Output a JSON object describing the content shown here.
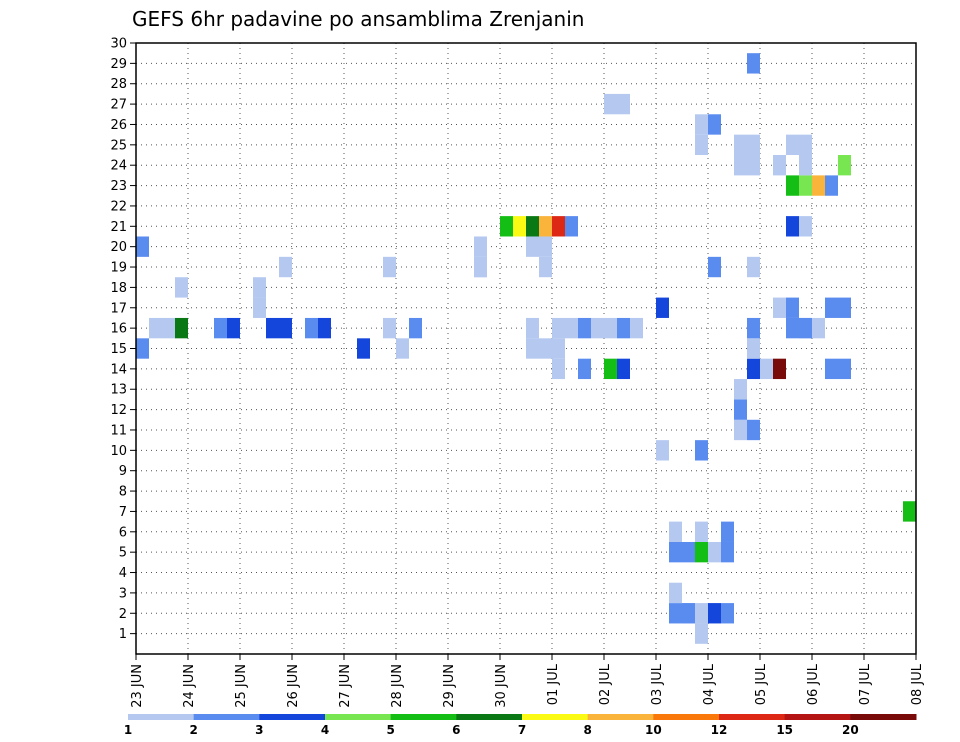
{
  "chart_data": {
    "type": "heatmap",
    "title": "GEFS 6hr padavine po ansamblima Zrenjanin",
    "x_tick_labels": [
      "23 JUN",
      "24 JUN",
      "25 JUN",
      "26 JUN",
      "27 JUN",
      "28 JUN",
      "29 JUN",
      "30 JUN",
      "01 JUL",
      "02 JUL",
      "03 JUL",
      "04 JUL",
      "05 JUL",
      "06 JUL",
      "07 JUL",
      "08 JUL"
    ],
    "y_tick_labels": [
      "1",
      "2",
      "3",
      "4",
      "5",
      "6",
      "7",
      "8",
      "9",
      "10",
      "11",
      "12",
      "13",
      "14",
      "15",
      "16",
      "17",
      "18",
      "19",
      "20",
      "21",
      "22",
      "23",
      "24",
      "25",
      "26",
      "27",
      "28",
      "29",
      "30"
    ],
    "time_steps_per_day": 4,
    "x_range_steps": [
      0,
      60
    ],
    "y_range_members": [
      0,
      30
    ],
    "grid": true,
    "colorbar": {
      "colors": [
        "#b4c8f0",
        "#5a8cf0",
        "#1446dc",
        "#78e650",
        "#14be14",
        "#0a7814",
        "#fafa14",
        "#fab43c",
        "#fa780a",
        "#dc2814",
        "#b41414",
        "#780a0a"
      ],
      "labels": [
        "1",
        "2",
        "3",
        "4",
        "5",
        "6",
        "7",
        "8",
        "10",
        "12",
        "15",
        "20"
      ]
    },
    "note_cells": "cells: [time_step_index_from_23_JUN_00UTC, ensemble_member, precipitation_mm_in_6h]",
    "cells": [
      [
        15,
        0,
        2
      ],
      [
        16,
        1,
        1
      ],
      [
        20,
        0,
        2
      ],
      [
        16,
        2,
        1
      ],
      [
        16,
        3,
        6
      ],
      [
        18,
        3,
        1
      ],
      [
        16,
        6,
        2
      ],
      [
        16,
        7,
        3
      ],
      [
        17,
        9,
        1
      ],
      [
        18,
        9,
        1
      ],
      [
        16,
        10,
        3
      ],
      [
        16,
        11,
        3
      ],
      [
        19,
        11,
        1
      ],
      [
        16,
        13,
        2
      ],
      [
        16,
        14,
        3
      ],
      [
        19,
        19,
        1
      ],
      [
        15,
        17,
        3
      ],
      [
        16,
        19,
        1
      ],
      [
        15,
        20,
        1
      ],
      [
        16,
        21,
        2
      ],
      [
        19,
        26,
        1
      ],
      [
        20,
        26,
        1
      ],
      [
        15,
        30,
        1
      ],
      [
        16,
        30,
        1
      ],
      [
        15,
        31,
        1
      ],
      [
        16,
        33,
        1
      ],
      [
        16,
        34,
        2
      ],
      [
        16,
        35,
        1
      ],
      [
        16,
        36,
        1
      ],
      [
        16,
        37,
        2
      ],
      [
        16,
        38,
        1
      ],
      [
        15,
        32,
        1
      ],
      [
        14,
        32,
        1
      ],
      [
        16,
        32,
        1
      ],
      [
        14,
        34,
        2
      ],
      [
        19,
        26,
        1
      ],
      [
        20,
        30,
        1
      ],
      [
        20,
        31,
        1
      ],
      [
        19,
        31,
        1
      ],
      [
        21,
        28,
        5
      ],
      [
        21,
        29,
        7
      ],
      [
        21,
        30,
        6
      ],
      [
        21,
        31,
        9
      ],
      [
        21,
        32,
        12
      ],
      [
        21,
        33,
        2
      ],
      [
        27,
        36,
        1
      ],
      [
        27,
        37,
        1
      ],
      [
        14,
        36,
        5
      ],
      [
        14,
        37,
        3
      ],
      [
        17,
        40,
        3
      ],
      [
        10,
        40,
        1
      ],
      [
        2,
        41,
        2
      ],
      [
        3,
        41,
        1
      ],
      [
        5,
        41,
        2
      ],
      [
        6,
        41,
        1
      ],
      [
        2,
        42,
        1
      ],
      [
        2,
        43,
        1
      ],
      [
        2,
        44,
        3
      ],
      [
        2,
        45,
        2
      ],
      [
        1,
        43,
        1
      ],
      [
        2,
        42,
        2
      ],
      [
        5,
        42,
        2
      ],
      [
        5,
        43,
        5
      ],
      [
        5,
        44,
        1
      ],
      [
        5,
        45,
        2
      ],
      [
        6,
        43,
        1
      ],
      [
        6,
        45,
        2
      ],
      [
        10,
        43,
        2
      ],
      [
        19,
        44,
        2
      ],
      [
        25,
        43,
        1
      ],
      [
        26,
        43,
        1
      ],
      [
        26,
        44,
        2
      ],
      [
        11,
        46,
        1
      ],
      [
        12,
        46,
        2
      ],
      [
        13,
        46,
        1
      ],
      [
        11,
        47,
        2
      ],
      [
        14,
        47,
        3
      ],
      [
        15,
        47,
        1
      ],
      [
        16,
        47,
        2
      ],
      [
        17,
        49,
        1
      ],
      [
        17,
        50,
        2
      ],
      [
        16,
        51,
        1
      ],
      [
        16,
        52,
        1
      ],
      [
        19,
        47,
        1
      ],
      [
        24,
        47,
        1
      ],
      [
        25,
        47,
        1
      ],
      [
        24,
        46,
        1
      ],
      [
        25,
        46,
        1
      ],
      [
        24,
        49,
        1
      ],
      [
        25,
        50,
        1
      ],
      [
        25,
        51,
        1
      ],
      [
        29,
        47,
        2
      ],
      [
        23,
        50,
        5
      ],
      [
        23,
        51,
        4
      ],
      [
        23,
        52,
        8
      ],
      [
        23,
        53,
        2
      ],
      [
        24,
        51,
        1
      ],
      [
        24,
        54,
        4
      ],
      [
        21,
        50,
        3
      ],
      [
        21,
        51,
        1
      ],
      [
        14,
        53,
        2
      ],
      [
        14,
        54,
        2
      ],
      [
        16,
        50,
        2
      ],
      [
        16,
        51,
        2
      ],
      [
        14,
        48,
        1
      ],
      [
        14,
        49,
        20
      ],
      [
        17,
        53,
        2
      ],
      [
        17,
        54,
        2
      ],
      [
        7,
        59,
        5
      ],
      [
        7,
        60,
        1
      ],
      [
        3,
        60,
        2
      ],
      [
        13,
        60,
        3
      ],
      [
        12,
        60,
        1
      ],
      [
        10,
        60,
        1
      ],
      [
        24,
        60,
        10
      ]
    ]
  }
}
